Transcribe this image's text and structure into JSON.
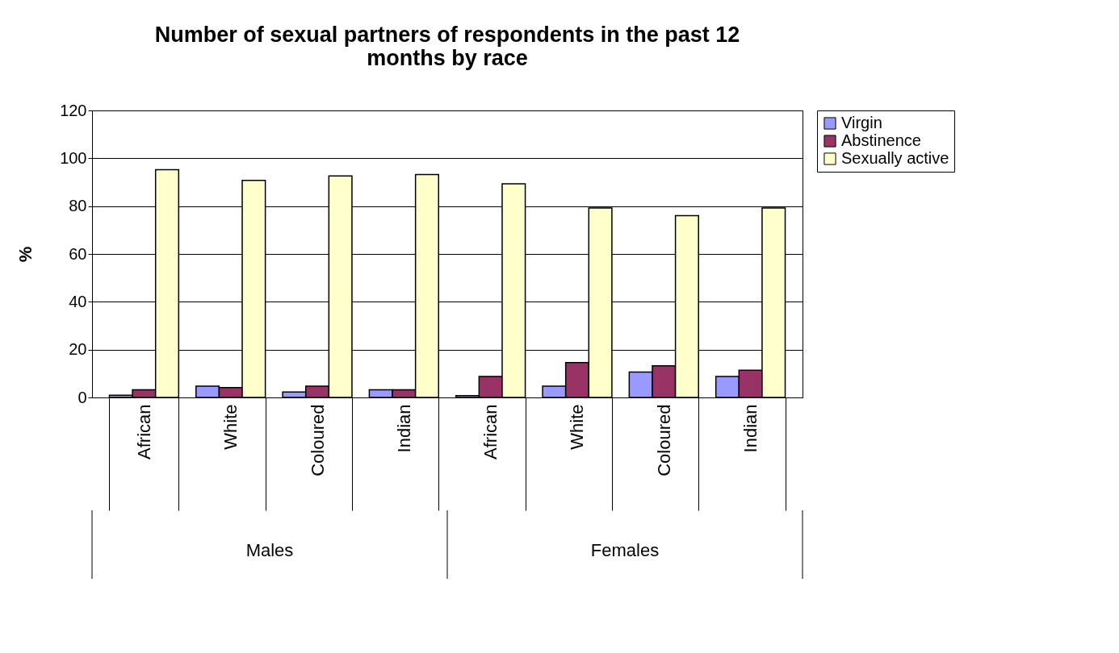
{
  "chart_data": {
    "type": "bar",
    "title": "Number of sexual partners of respondents in the past 12 months by race",
    "ylabel": "%",
    "categories": [
      "African",
      "White",
      "Coloured",
      "Indian",
      "African",
      "White",
      "Coloured",
      "Indian"
    ],
    "annotations": [
      "Males",
      "Females"
    ],
    "series": [
      {
        "name": "Virgin",
        "color": "#9999ff",
        "values": [
          0.9,
          4.7,
          2.3,
          3.2,
          0.8,
          4.7,
          10.6,
          8.8
        ]
      },
      {
        "name": "Abstinence",
        "color": "#993366",
        "values": [
          3.2,
          4.1,
          4.7,
          3.2,
          8.8,
          14.6,
          13.2,
          11.4
        ]
      },
      {
        "name": "Sexually active",
        "color": "#ffffcc",
        "values": [
          95.2,
          90.8,
          92.6,
          93.2,
          89.3,
          79.2,
          76.0,
          79.2
        ]
      }
    ],
    "ylim": [
      0,
      120
    ],
    "yticks": [
      0,
      20,
      40,
      60,
      80,
      100,
      120
    ],
    "grid": "y",
    "legend": "right"
  }
}
